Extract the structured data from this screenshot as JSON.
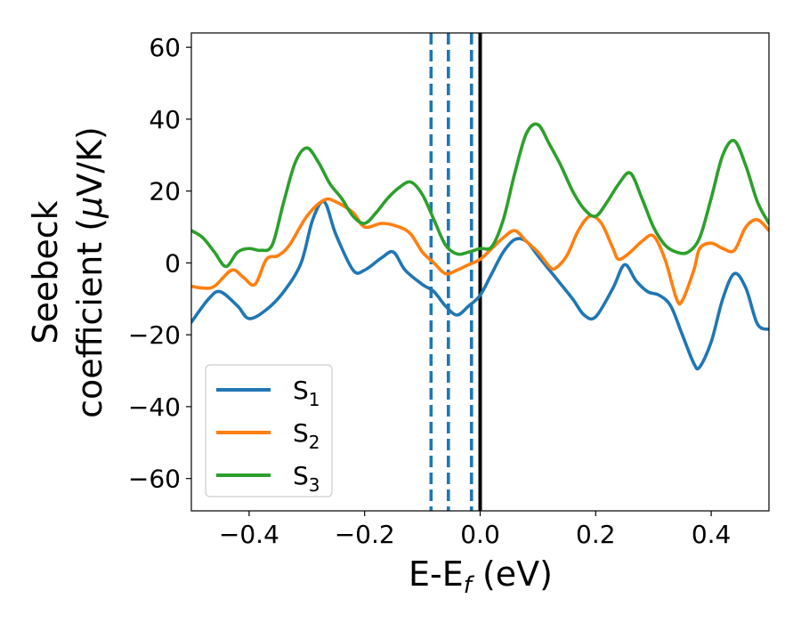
{
  "chart_data": {
    "type": "line",
    "xlabel": {
      "main": "E-E",
      "sub": "f",
      "unit": " (eV)"
    },
    "ylabel": {
      "line1": "Seebeck",
      "line2": "coefficient  (",
      "mu": "μ",
      "unit": "V/K)"
    },
    "xlim": [
      -0.5,
      0.5
    ],
    "ylim": [
      -69,
      64
    ],
    "xticks": [
      -0.4,
      -0.2,
      0.0,
      0.2,
      0.4
    ],
    "xtick_labels": [
      "−0.4",
      "−0.2",
      "0.0",
      "0.2",
      "0.4"
    ],
    "yticks": [
      60,
      40,
      20,
      0,
      -20,
      -40,
      -60
    ],
    "ytick_labels": [
      "60",
      "40",
      "20",
      "0",
      "−20",
      "−40",
      "−60"
    ],
    "legend_position": "lower-left",
    "vlines": [
      {
        "x": -0.085,
        "style": "dashed",
        "color": "#1f77b4"
      },
      {
        "x": -0.055,
        "style": "dashed",
        "color": "#1f77b4"
      },
      {
        "x": -0.015,
        "style": "dashed",
        "color": "#1f77b4"
      },
      {
        "x": 0.0,
        "style": "solid",
        "color": "#000000"
      }
    ],
    "series": [
      {
        "name": "S",
        "sub": "1",
        "color": "#1f77b4",
        "points": [
          [
            -0.5,
            -16.5
          ],
          [
            -0.47,
            -10
          ],
          [
            -0.45,
            -8
          ],
          [
            -0.42,
            -12
          ],
          [
            -0.4,
            -15.5
          ],
          [
            -0.37,
            -13
          ],
          [
            -0.34,
            -8
          ],
          [
            -0.31,
            0
          ],
          [
            -0.29,
            12
          ],
          [
            -0.27,
            17
          ],
          [
            -0.25,
            8
          ],
          [
            -0.22,
            -2
          ],
          [
            -0.2,
            -2
          ],
          [
            -0.17,
            1.5
          ],
          [
            -0.15,
            3
          ],
          [
            -0.13,
            -2
          ],
          [
            -0.1,
            -6
          ],
          [
            -0.08,
            -8
          ],
          [
            -0.06,
            -12
          ],
          [
            -0.04,
            -14.5
          ],
          [
            -0.02,
            -12
          ],
          [
            0.0,
            -9
          ],
          [
            0.02,
            -3
          ],
          [
            0.04,
            3
          ],
          [
            0.06,
            6.5
          ],
          [
            0.08,
            6
          ],
          [
            0.1,
            2
          ],
          [
            0.13,
            -4
          ],
          [
            0.16,
            -10
          ],
          [
            0.18,
            -14.5
          ],
          [
            0.2,
            -15
          ],
          [
            0.23,
            -7
          ],
          [
            0.25,
            -0.5
          ],
          [
            0.27,
            -5
          ],
          [
            0.29,
            -8
          ],
          [
            0.31,
            -9
          ],
          [
            0.33,
            -12
          ],
          [
            0.35,
            -20
          ],
          [
            0.37,
            -28
          ],
          [
            0.38,
            -29
          ],
          [
            0.4,
            -22
          ],
          [
            0.42,
            -10
          ],
          [
            0.44,
            -3
          ],
          [
            0.46,
            -7
          ],
          [
            0.48,
            -17
          ],
          [
            0.5,
            -18.5
          ]
        ]
      },
      {
        "name": "S",
        "sub": "2",
        "color": "#ff7f0e",
        "points": [
          [
            -0.5,
            -6.5
          ],
          [
            -0.48,
            -7
          ],
          [
            -0.46,
            -6.5
          ],
          [
            -0.43,
            -2
          ],
          [
            -0.41,
            -4
          ],
          [
            -0.39,
            -6
          ],
          [
            -0.37,
            1
          ],
          [
            -0.35,
            2
          ],
          [
            -0.33,
            5
          ],
          [
            -0.3,
            13
          ],
          [
            -0.27,
            17.5
          ],
          [
            -0.25,
            17
          ],
          [
            -0.22,
            14
          ],
          [
            -0.2,
            10
          ],
          [
            -0.17,
            11
          ],
          [
            -0.14,
            10
          ],
          [
            -0.12,
            8
          ],
          [
            -0.1,
            3
          ],
          [
            -0.08,
            0
          ],
          [
            -0.06,
            -3
          ],
          [
            -0.04,
            -2
          ],
          [
            -0.02,
            -0.5
          ],
          [
            0.0,
            1
          ],
          [
            0.02,
            4
          ],
          [
            0.04,
            7
          ],
          [
            0.06,
            9
          ],
          [
            0.08,
            6
          ],
          [
            0.1,
            3
          ],
          [
            0.12,
            -1
          ],
          [
            0.13,
            -1.5
          ],
          [
            0.15,
            2
          ],
          [
            0.17,
            9
          ],
          [
            0.19,
            13
          ],
          [
            0.21,
            11
          ],
          [
            0.23,
            4
          ],
          [
            0.24,
            1
          ],
          [
            0.26,
            3
          ],
          [
            0.28,
            6
          ],
          [
            0.3,
            7.5
          ],
          [
            0.32,
            1
          ],
          [
            0.34,
            -10
          ],
          [
            0.35,
            -10.5
          ],
          [
            0.37,
            -2
          ],
          [
            0.38,
            4
          ],
          [
            0.4,
            5.5
          ],
          [
            0.42,
            4
          ],
          [
            0.44,
            3.5
          ],
          [
            0.46,
            10
          ],
          [
            0.48,
            12
          ],
          [
            0.5,
            9
          ]
        ]
      },
      {
        "name": "S",
        "sub": "3",
        "color": "#2ca02c",
        "points": [
          [
            -0.5,
            9
          ],
          [
            -0.48,
            7
          ],
          [
            -0.46,
            3
          ],
          [
            -0.44,
            -1
          ],
          [
            -0.42,
            3
          ],
          [
            -0.4,
            4
          ],
          [
            -0.38,
            3.5
          ],
          [
            -0.36,
            5
          ],
          [
            -0.34,
            17
          ],
          [
            -0.32,
            28
          ],
          [
            -0.3,
            32
          ],
          [
            -0.28,
            28
          ],
          [
            -0.26,
            22
          ],
          [
            -0.24,
            18
          ],
          [
            -0.22,
            13
          ],
          [
            -0.2,
            11
          ],
          [
            -0.18,
            14
          ],
          [
            -0.16,
            18
          ],
          [
            -0.14,
            21
          ],
          [
            -0.12,
            22.5
          ],
          [
            -0.1,
            19
          ],
          [
            -0.08,
            12
          ],
          [
            -0.06,
            5
          ],
          [
            -0.04,
            2.5
          ],
          [
            -0.02,
            3
          ],
          [
            0.0,
            4
          ],
          [
            0.02,
            4.5
          ],
          [
            0.04,
            12
          ],
          [
            0.06,
            25
          ],
          [
            0.08,
            36
          ],
          [
            0.1,
            38.5
          ],
          [
            0.12,
            33
          ],
          [
            0.14,
            27
          ],
          [
            0.16,
            20
          ],
          [
            0.18,
            15
          ],
          [
            0.2,
            13
          ],
          [
            0.22,
            17
          ],
          [
            0.24,
            22
          ],
          [
            0.26,
            25
          ],
          [
            0.28,
            18
          ],
          [
            0.3,
            10
          ],
          [
            0.32,
            5
          ],
          [
            0.34,
            3
          ],
          [
            0.36,
            3
          ],
          [
            0.38,
            7
          ],
          [
            0.4,
            18
          ],
          [
            0.42,
            30
          ],
          [
            0.44,
            34
          ],
          [
            0.46,
            27
          ],
          [
            0.48,
            17
          ],
          [
            0.5,
            11
          ]
        ]
      }
    ]
  }
}
